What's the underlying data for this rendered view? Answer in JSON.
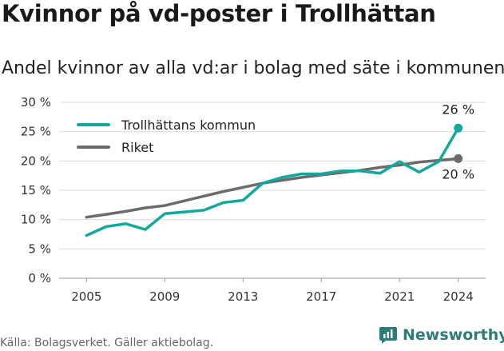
{
  "header": {
    "title": "Kvinnor på vd-poster i Trollhättan",
    "subtitle": "Andel kvinnor av alla vd:ar i bolag med säte i kommunen"
  },
  "footer": {
    "source": "Källa: Bolagsverket. Gäller aktiebolag."
  },
  "brand": {
    "name": "Newsworthy",
    "icon": "newsworthy-logo-icon",
    "color": "#2c7d7a"
  },
  "chart_data": {
    "type": "line",
    "x": [
      2005,
      2006,
      2007,
      2008,
      2009,
      2010,
      2011,
      2012,
      2013,
      2014,
      2015,
      2016,
      2017,
      2018,
      2019,
      2020,
      2021,
      2022,
      2023,
      2024
    ],
    "series": [
      {
        "name": "Trollhättans kommun",
        "color": "#13a89e",
        "values": [
          7.3,
          8.8,
          9.3,
          8.3,
          11.0,
          11.3,
          11.6,
          12.9,
          13.3,
          16.2,
          17.2,
          17.8,
          17.8,
          18.3,
          18.3,
          17.9,
          19.9,
          18.1,
          19.9,
          25.6
        ],
        "end_label": "26 %"
      },
      {
        "name": "Riket",
        "color": "#6b6b6b",
        "values": [
          10.4,
          10.9,
          11.4,
          12.0,
          12.4,
          13.2,
          14.0,
          14.8,
          15.5,
          16.2,
          16.7,
          17.2,
          17.6,
          18.0,
          18.4,
          18.9,
          19.3,
          19.8,
          20.1,
          20.4
        ],
        "end_label": "20 %"
      }
    ],
    "x_ticks": [
      "2005",
      "2009",
      "2013",
      "2017",
      "2021",
      "2024"
    ],
    "y_ticks": [
      "0 %",
      "5 %",
      "10 %",
      "15 %",
      "20 %",
      "25 %",
      "30 %"
    ],
    "ylim": [
      0,
      30
    ],
    "xlim": [
      2005,
      2024
    ],
    "grid": "horizontal",
    "legend_position": "top-left",
    "xlabel": "",
    "ylabel": ""
  }
}
